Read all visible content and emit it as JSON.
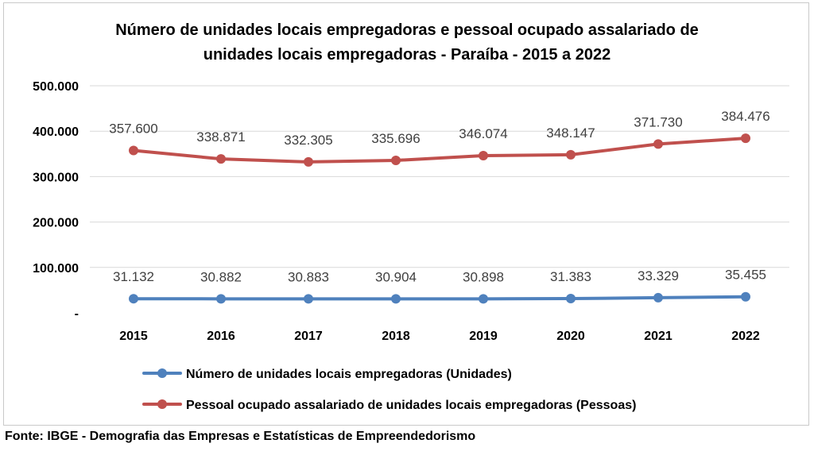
{
  "chart_data": {
    "type": "line",
    "title_lines": [
      "Número de unidades locais empregadoras e pessoal ocupado assalariado de",
      "unidades locais empregadoras - Paraíba - 2015 a 2022"
    ],
    "categories": [
      "2015",
      "2016",
      "2017",
      "2018",
      "2019",
      "2020",
      "2021",
      "2022"
    ],
    "ylim": [
      0,
      500000
    ],
    "yticks": [
      {
        "value": 0,
        "label": "-"
      },
      {
        "value": 100000,
        "label": "100.000"
      },
      {
        "value": 200000,
        "label": "200.000"
      },
      {
        "value": 300000,
        "label": "300.000"
      },
      {
        "value": 400000,
        "label": "400.000"
      },
      {
        "value": 500000,
        "label": "500.000"
      }
    ],
    "grid": true,
    "legend_position": "bottom",
    "series": [
      {
        "name": "Número de unidades locais empregadoras (Unidades)",
        "color": "#4f81bd",
        "values": [
          31132,
          30882,
          30883,
          30904,
          30898,
          31383,
          33329,
          35455
        ],
        "labels": [
          "31.132",
          "30.882",
          "30.883",
          "30.904",
          "30.898",
          "31.383",
          "33.329",
          "35.455"
        ]
      },
      {
        "name": "Pessoal ocupado assalariado de unidades locais empregadoras (Pessoas)",
        "color": "#c0504d",
        "values": [
          357600,
          338871,
          332305,
          335696,
          346074,
          348147,
          371730,
          384476
        ],
        "labels": [
          "357.600",
          "338.871",
          "332.305",
          "335.696",
          "346.074",
          "348.147",
          "371.730",
          "384.476"
        ]
      }
    ]
  },
  "source": "Fonte: IBGE - Demografia das Empresas e Estatísticas de Empreendedorismo"
}
